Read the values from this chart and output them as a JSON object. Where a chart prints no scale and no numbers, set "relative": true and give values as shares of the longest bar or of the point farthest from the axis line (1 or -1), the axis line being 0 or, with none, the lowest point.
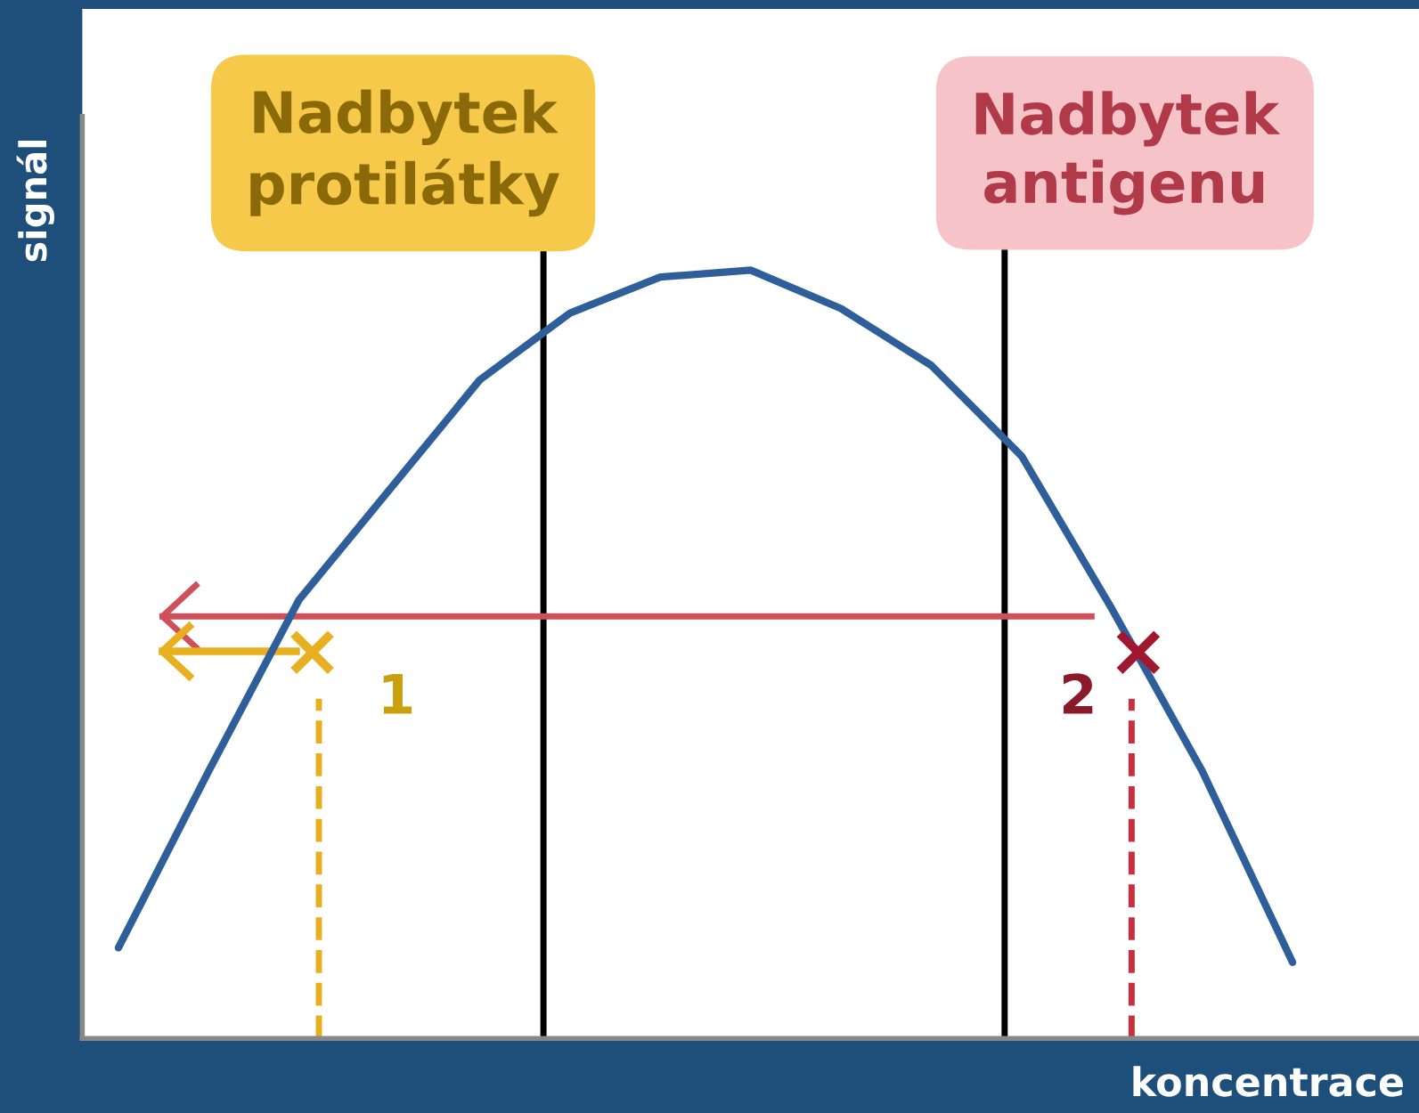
{
  "chart_data": {
    "type": "line",
    "relative": true,
    "xlabel": "koncentrace",
    "ylabel": "signál",
    "categories": [
      null,
      null,
      null,
      null,
      null,
      null,
      null,
      null,
      null,
      null,
      null,
      null,
      null,
      null
    ],
    "series": [
      {
        "color": "#2f5f9a",
        "values": [
          0.118,
          0.348,
          0.571,
          0.714,
          0.857,
          0.944,
          0.991,
          1.0,
          0.95,
          0.876,
          0.758,
          0.559,
          0.348,
          0.099
        ]
      }
    ],
    "annotations": [
      "1",
      "2",
      "Nadbytek\nprotilátky",
      "Nadbytek\nantigenu"
    ]
  }
}
